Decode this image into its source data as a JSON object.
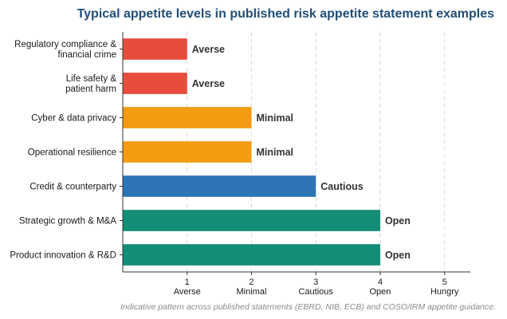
{
  "chart_data": {
    "type": "bar",
    "orientation": "horizontal",
    "title": "Typical appetite levels in published risk appetite statement examples",
    "categories": [
      [
        "Regulatory compliance &",
        "financial crime"
      ],
      [
        "Life safety &",
        "patient harm"
      ],
      [
        "Cyber & data privacy"
      ],
      [
        "Operational resilience"
      ],
      [
        "Credit & counterparty"
      ],
      [
        "Strategic growth & M&A"
      ],
      [
        "Product innovation & R&D"
      ]
    ],
    "values": [
      1,
      1,
      2,
      2,
      3,
      4,
      4
    ],
    "value_labels": [
      "Averse",
      "Averse",
      "Minimal",
      "Minimal",
      "Cautious",
      "Open",
      "Open"
    ],
    "bar_colors": [
      "#e74c3c",
      "#e74c3c",
      "#f39c12",
      "#f39c12",
      "#2e75b6",
      "#138d75",
      "#138d75"
    ],
    "xlim": [
      0,
      5.4
    ],
    "xticks": [
      1,
      2,
      3,
      4,
      5
    ],
    "xtick_labels": [
      [
        "1",
        "Averse"
      ],
      [
        "2",
        "Minimal"
      ],
      [
        "3",
        "Cautious"
      ],
      [
        "4",
        "Open"
      ],
      [
        "5",
        "Hungry"
      ]
    ],
    "grid": "vertical dashed",
    "note": "Indicative pattern across published statements (EBRD, NIB, ECB) and COSO/IRM appetite guidance."
  }
}
